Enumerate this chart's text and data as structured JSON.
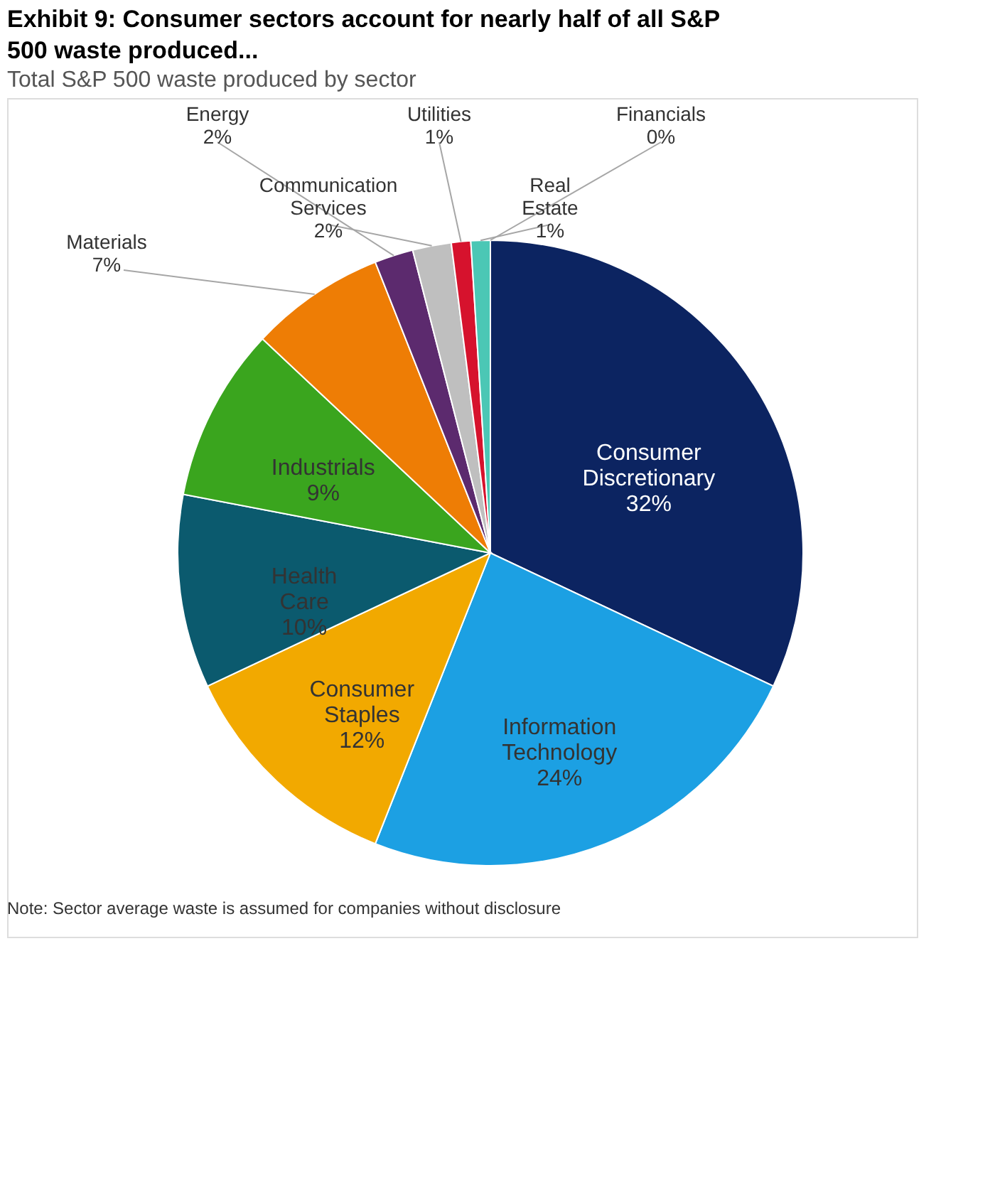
{
  "chart_data": {
    "type": "pie",
    "title": "Exhibit 9: Consumer sectors account for nearly half of all S&P 500 waste produced...",
    "subtitle": "Total S&P 500 waste produced by sector",
    "categories": [
      "Consumer Discretionary",
      "Information Technology",
      "Consumer Staples",
      "Health Care",
      "Industrials",
      "Materials",
      "Energy",
      "Communication Services",
      "Utilities",
      "Real Estate",
      "Financials"
    ],
    "values": [
      32,
      24,
      12,
      10,
      9,
      7,
      2,
      2,
      1,
      1,
      0
    ],
    "value_labels": [
      "32%",
      "24%",
      "12%",
      "10%",
      "9%",
      "7%",
      "2%",
      "2%",
      "1%",
      "1%",
      "0%"
    ],
    "colors": [
      "#0c2461",
      "#1ca0e3",
      "#f2a900",
      "#0b5a6e",
      "#3aa51e",
      "#ee7d05",
      "#5c2a6e",
      "#bfbfbf",
      "#d6122d",
      "#4bc7b5",
      "#7f7f7f"
    ],
    "data_labels": true,
    "legend": false,
    "annotations": [
      "Note: Sector average waste is assumed for companies without disclosure"
    ]
  }
}
